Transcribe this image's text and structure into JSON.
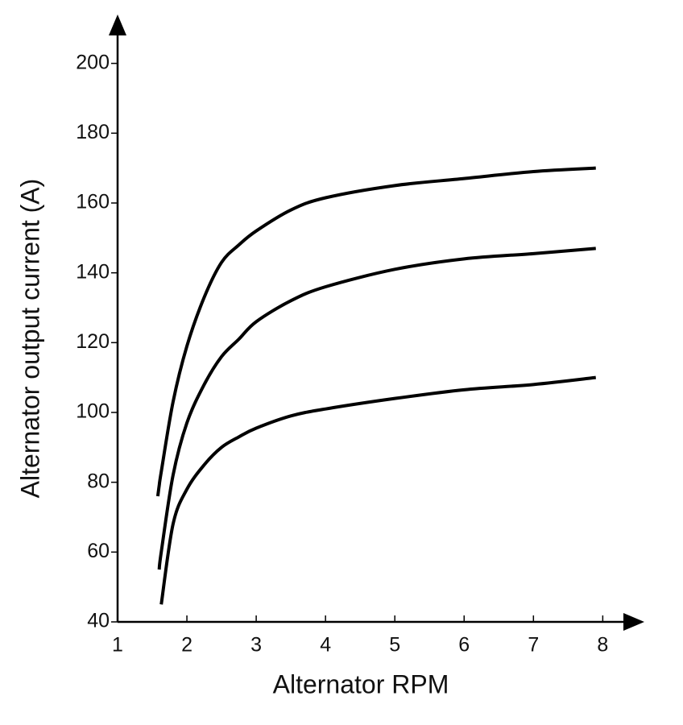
{
  "chart_data": {
    "type": "line",
    "x_label": "Alternator RPM",
    "y_label": "Alternator output current (A)",
    "x": [
      1.58,
      1.6,
      1.63,
      1.8,
      2,
      2.25,
      2.5,
      2.75,
      3,
      3.5,
      4,
      5,
      6,
      7,
      7.9
    ],
    "series": [
      {
        "color": "#000000",
        "values": [
          76,
          79,
          83,
          103,
          119,
          133,
          143,
          148,
          152,
          158,
          161.5,
          165,
          167,
          169,
          170
        ]
      },
      {
        "color": "#000000",
        "values": [
          null,
          55,
          60,
          82,
          97,
          108,
          116,
          121,
          126,
          132,
          136,
          141,
          144,
          145.5,
          147
        ]
      },
      {
        "color": "#000000",
        "values": [
          null,
          null,
          45,
          68,
          78,
          85,
          90,
          93,
          95.5,
          99,
          101,
          104,
          106.5,
          108,
          110
        ]
      }
    ],
    "xlim": [
      1,
      8.6
    ],
    "ylim": [
      40,
      214
    ],
    "xticks": [
      1,
      2,
      3,
      4,
      5,
      6,
      7,
      8
    ],
    "yticks": [
      40,
      60,
      80,
      100,
      120,
      140,
      160,
      180,
      200
    ],
    "grid": false
  }
}
